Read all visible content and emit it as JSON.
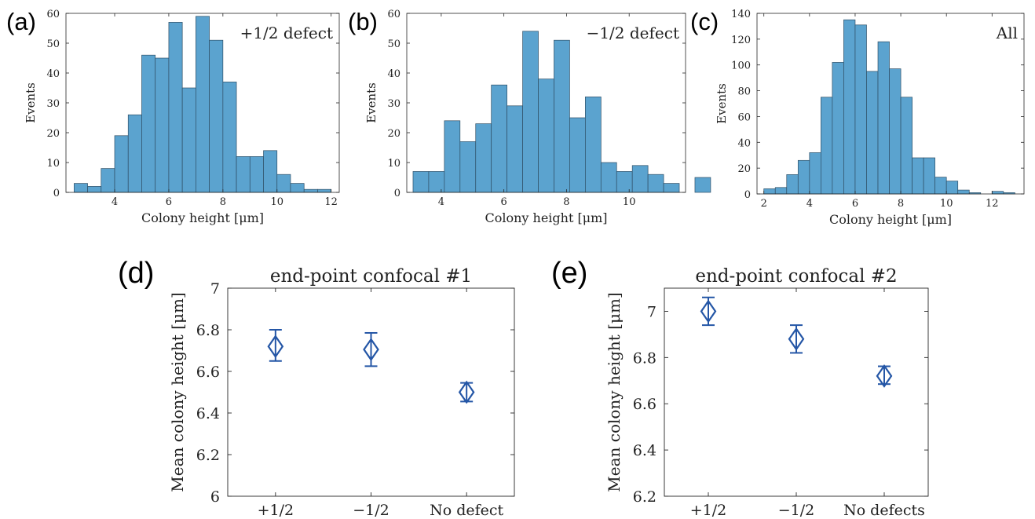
{
  "chart_data": [
    {
      "type": "bar",
      "panel_label": "(a)",
      "annotation": "+1/2 defect",
      "xlabel": "Colony height [μm]",
      "ylabel": "Events",
      "bin_width": 0.5,
      "bin_edges_start": 2.5,
      "values": [
        3,
        2,
        8,
        19,
        26,
        46,
        45,
        57,
        35,
        59,
        51,
        37,
        12,
        12,
        14,
        6,
        3,
        1,
        1
      ],
      "xlim": [
        2.2,
        12.3
      ],
      "ylim": [
        0,
        60
      ],
      "xticks": [
        4,
        6,
        8,
        10,
        12
      ],
      "yticks": [
        0,
        10,
        20,
        30,
        40,
        50,
        60
      ],
      "bar_color": "#5ba3cf",
      "edge_color": "#2f4f66"
    },
    {
      "type": "bar",
      "panel_label": "(b)",
      "annotation": "−1/2 defect",
      "xlabel": "Colony height [μm]",
      "ylabel": "Events",
      "bin_width": 0.5,
      "bin_edges_start": 3.1,
      "values": [
        7,
        7,
        24,
        17,
        23,
        36,
        29,
        54,
        38,
        51,
        25,
        32,
        10,
        7,
        9,
        6,
        3,
        0,
        5
      ],
      "xlim": [
        2.9,
        11.8
      ],
      "ylim": [
        0,
        60
      ],
      "xticks": [
        4,
        6,
        8,
        10
      ],
      "yticks": [
        0,
        10,
        20,
        30,
        40,
        50,
        60
      ],
      "bar_color": "#5ba3cf",
      "edge_color": "#2f4f66"
    },
    {
      "type": "bar",
      "panel_label": "(c)",
      "annotation": "All",
      "xlabel": "Colony height [μm]",
      "ylabel": "Events",
      "bin_width": 0.5,
      "bin_edges_start": 2.0,
      "values": [
        4,
        5,
        15,
        26,
        32,
        75,
        102,
        135,
        131,
        95,
        118,
        97,
        75,
        28,
        28,
        13,
        10,
        3,
        1,
        0,
        2,
        1
      ],
      "xlim": [
        1.7,
        13.4
      ],
      "ylim": [
        0,
        140
      ],
      "xticks": [
        2,
        4,
        6,
        8,
        10,
        12
      ],
      "yticks": [
        0,
        20,
        40,
        60,
        80,
        100,
        120,
        140
      ],
      "bar_color": "#5ba3cf",
      "edge_color": "#2f4f66"
    },
    {
      "type": "scatter",
      "panel_label": "(d)",
      "title": "end-point confocal #1",
      "ylabel": "Mean colony height [μm]",
      "categories": [
        "+1/2",
        "−1/2",
        "No defect"
      ],
      "values": [
        6.72,
        6.705,
        6.5
      ],
      "err_low": [
        6.65,
        6.625,
        6.455
      ],
      "err_high": [
        6.8,
        6.785,
        6.545
      ],
      "ylim": [
        6,
        7
      ],
      "yticks": [
        6,
        6.2,
        6.4,
        6.6,
        6.8,
        7
      ],
      "marker": "diamond",
      "color": "#2456a6"
    },
    {
      "type": "scatter",
      "panel_label": "(e)",
      "title": "end-point confocal #2",
      "ylabel": "Mean colony height [μm]",
      "categories": [
        "+1/2",
        "−1/2",
        "No defects"
      ],
      "values": [
        7.0,
        6.88,
        6.72
      ],
      "err_low": [
        6.94,
        6.82,
        6.685
      ],
      "err_high": [
        7.06,
        6.94,
        6.762
      ],
      "ylim": [
        6.2,
        7.1
      ],
      "yticks": [
        6.2,
        6.4,
        6.6,
        6.8,
        7
      ],
      "marker": "diamond",
      "color": "#2456a6"
    }
  ]
}
